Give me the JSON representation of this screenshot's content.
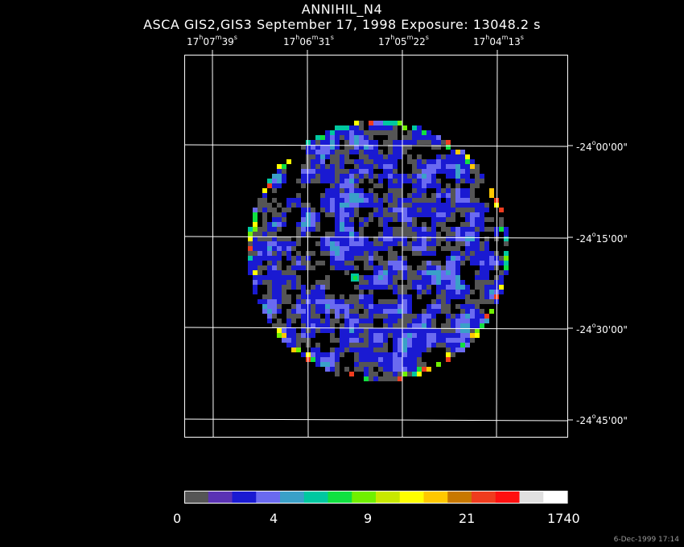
{
  "header": {
    "title": "ANNIHIL_N4",
    "subtitle": "ASCA GIS2,GIS3 September 17, 1998 Exposure: 13048.2 s"
  },
  "axes": {
    "ra_ticks": [
      {
        "h": "17",
        "m": "07",
        "s": "39"
      },
      {
        "h": "17",
        "m": "06",
        "s": "31"
      },
      {
        "h": "17",
        "m": "05",
        "s": "22"
      },
      {
        "h": "17",
        "m": "04",
        "s": "13"
      }
    ],
    "dec_ticks": [
      {
        "d": "-24",
        "m": "00",
        "s": "00"
      },
      {
        "d": "-24",
        "m": "15",
        "s": "00"
      },
      {
        "d": "-24",
        "m": "30",
        "s": "00"
      },
      {
        "d": "-24",
        "m": "45",
        "s": "00"
      }
    ]
  },
  "colorbar": {
    "labels": [
      "0",
      "4",
      "9",
      "21",
      "1740"
    ],
    "colors": [
      "#555555",
      "#5a32b4",
      "#1a1ad2",
      "#6a6af0",
      "#3aa0c8",
      "#00c8a0",
      "#10e040",
      "#70f000",
      "#c8e800",
      "#ffff00",
      "#ffc800",
      "#c87800",
      "#f03c1e",
      "#ff1010",
      "#e0e0e0",
      "#ffffff"
    ]
  },
  "footer": {
    "timestamp": "6-Dec-1999 17:14"
  }
}
